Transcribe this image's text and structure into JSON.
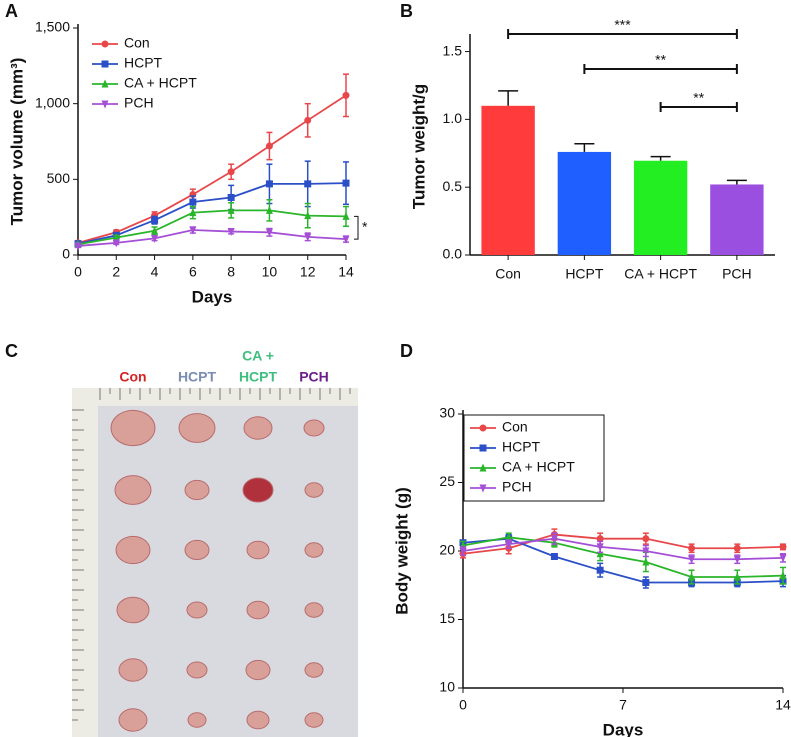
{
  "chart_data": [
    {
      "type": "line",
      "panel": "A",
      "y_label": "Tumor volume (mm³)",
      "x_label": "Days",
      "x": [
        0,
        2,
        4,
        6,
        8,
        10,
        12,
        14
      ],
      "xlim": [
        0,
        14
      ],
      "xticks": [
        0,
        2,
        4,
        6,
        8,
        10,
        12,
        14
      ],
      "ylim": [
        0,
        1500
      ],
      "yticks": [
        0,
        500,
        {
          "value": 1000,
          "label": "1,000"
        },
        {
          "value": 1500,
          "label": "1,500"
        }
      ],
      "legend": "upper left",
      "legend_frame": false,
      "annotation": "*",
      "series": [
        {
          "name": "Con",
          "color": "#e8474a",
          "marker": "circle",
          "values": [
            80,
            150,
            260,
            400,
            550,
            720,
            890,
            1055
          ],
          "errors": [
            10,
            15,
            25,
            35,
            50,
            90,
            110,
            140
          ]
        },
        {
          "name": "HCPT",
          "color": "#2a4fc7",
          "marker": "square",
          "values": [
            75,
            130,
            230,
            350,
            380,
            470,
            470,
            475
          ],
          "errors": [
            10,
            15,
            25,
            40,
            80,
            130,
            150,
            140
          ]
        },
        {
          "name": "CA + HCPT",
          "color": "#2ab52a",
          "marker": "triangle-up",
          "values": [
            70,
            115,
            160,
            280,
            295,
            295,
            260,
            255
          ],
          "errors": [
            10,
            15,
            25,
            40,
            50,
            70,
            80,
            65
          ]
        },
        {
          "name": "PCH",
          "color": "#a44fd6",
          "marker": "triangle-down",
          "values": [
            60,
            80,
            110,
            165,
            155,
            150,
            120,
            105
          ],
          "errors": [
            10,
            10,
            15,
            20,
            15,
            25,
            25,
            20
          ]
        }
      ]
    },
    {
      "type": "bar",
      "panel": "B",
      "y_label": "Tumor weight/g",
      "categories": [
        "Con",
        "HCPT",
        "CA + HCPT",
        "PCH"
      ],
      "values": [
        1.1,
        0.76,
        0.695,
        0.52
      ],
      "errors": [
        0.11,
        0.06,
        0.03,
        0.03
      ],
      "colors": [
        "#ff3b3b",
        "#1f5fff",
        "#22ee22",
        "#9b4fe0"
      ],
      "ylim": [
        0,
        1.6
      ],
      "yticks": [
        {
          "value": 0,
          "label": "0.0"
        },
        0.5,
        {
          "value": 1,
          "label": "1.0"
        },
        1.5
      ],
      "annotations": [
        "***",
        "**",
        "**"
      ]
    },
    {
      "type": "line",
      "panel": "D",
      "y_label": "Body weight (g)",
      "x_label": "Days",
      "x": [
        0,
        2,
        4,
        6,
        8,
        10,
        12,
        14
      ],
      "xlim": [
        0,
        14
      ],
      "xticks": [
        0,
        7,
        14
      ],
      "ylim": [
        10,
        30
      ],
      "yticks": [
        10,
        15,
        20,
        25,
        30
      ],
      "legend": "upper left",
      "legend_frame": true,
      "series": [
        {
          "name": "Con",
          "color": "#e8474a",
          "marker": "circle",
          "values": [
            19.8,
            20.2,
            21.2,
            20.9,
            20.9,
            20.2,
            20.2,
            20.3
          ],
          "errors": [
            0.3,
            0.4,
            0.4,
            0.4,
            0.4,
            0.3,
            0.3,
            0.2
          ]
        },
        {
          "name": "HCPT",
          "color": "#2a4fc7",
          "marker": "square",
          "values": [
            20.6,
            20.9,
            19.6,
            18.6,
            17.7,
            17.7,
            17.7,
            17.8
          ],
          "errors": [
            0.2,
            0.3,
            0.2,
            0.5,
            0.4,
            0.3,
            0.3,
            0.4
          ]
        },
        {
          "name": "CA + HCPT",
          "color": "#2ab52a",
          "marker": "triangle-up",
          "values": [
            20.4,
            21.0,
            20.6,
            19.8,
            19.2,
            18.1,
            18.1,
            18.2
          ],
          "errors": [
            0.3,
            0.3,
            0.3,
            0.5,
            0.7,
            0.5,
            0.5,
            0.6
          ]
        },
        {
          "name": "PCH",
          "color": "#a44fd6",
          "marker": "triangle-down",
          "values": [
            20.0,
            20.5,
            20.9,
            20.3,
            20.0,
            19.4,
            19.4,
            19.5
          ],
          "errors": [
            0.3,
            0.3,
            0.4,
            0.4,
            0.4,
            0.3,
            0.3,
            0.3
          ]
        }
      ]
    }
  ],
  "photo": {
    "panel": "C",
    "columns": [
      {
        "lines": [
          "Con"
        ],
        "color": "#d42424"
      },
      {
        "lines": [
          "HCPT"
        ],
        "color": "#7a8db0"
      },
      {
        "lines": [
          "CA +",
          "HCPT"
        ],
        "color": "#3fbf7f"
      },
      {
        "lines": [
          "PCH"
        ],
        "color": "#6a1f8a"
      }
    ]
  }
}
